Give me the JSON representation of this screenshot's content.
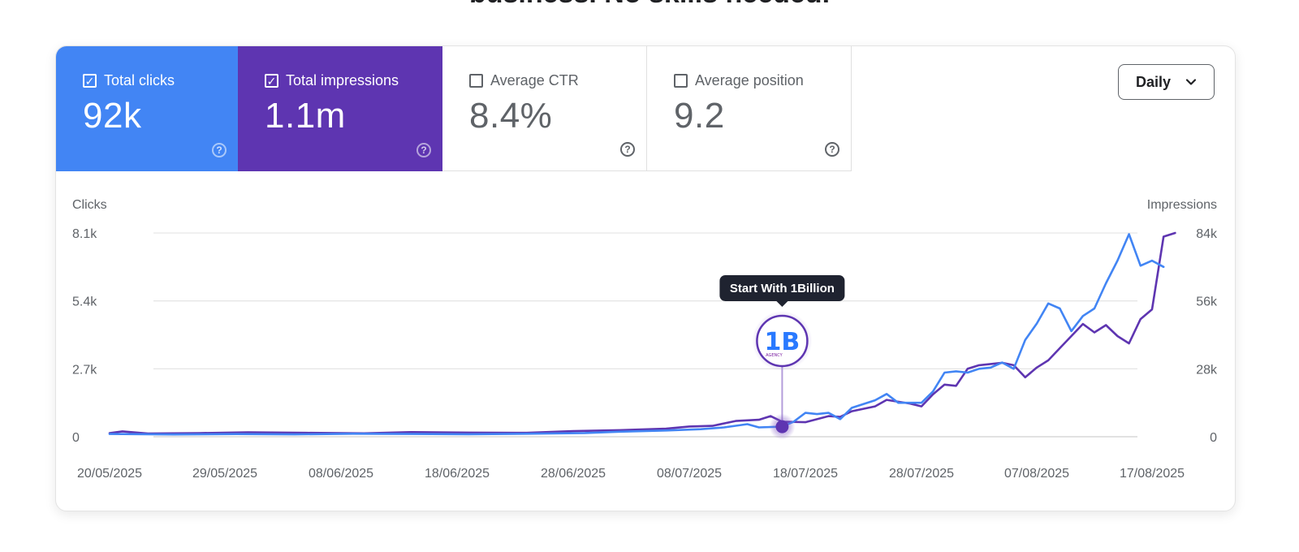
{
  "page": {
    "heading_partial": "business. No skills needed."
  },
  "tabs": [
    {
      "label": "Total clicks",
      "value": "92k",
      "checked": true
    },
    {
      "label": "Total impressions",
      "value": "1.1m",
      "checked": true
    },
    {
      "label": "Average CTR",
      "value": "8.4%",
      "checked": false
    },
    {
      "label": "Average position",
      "value": "9.2",
      "checked": false
    }
  ],
  "period_dropdown": {
    "selected": "Daily"
  },
  "annotation": {
    "tooltip": "Start With 1Billion",
    "logo_text": "1B",
    "logo_caption": "AGENCY",
    "x": "16/07/2025",
    "clicks": 400
  },
  "colors": {
    "clicks": "#4285f4",
    "impressions": "#5e35b1",
    "tooltip_bg": "#1f2330"
  },
  "chart_data": {
    "type": "line",
    "title": "",
    "xlabel": "",
    "ylabel_left": "Clicks",
    "ylabel_right": "Impressions",
    "left_axis": {
      "ylim": [
        0,
        8100
      ],
      "ticks": [
        "0",
        "2.7k",
        "5.4k",
        "8.1k"
      ]
    },
    "right_axis": {
      "ylim": [
        0,
        84000
      ],
      "ticks": [
        "0",
        "28k",
        "56k",
        "84k"
      ]
    },
    "x_ticks": [
      "20/05/2025",
      "29/05/2025",
      "08/06/2025",
      "18/06/2025",
      "28/06/2025",
      "08/07/2025",
      "18/07/2025",
      "28/07/2025",
      "07/08/2025",
      "17/08/2025"
    ],
    "grid": true,
    "legend": "none",
    "series": [
      {
        "name": "Total clicks",
        "axis": "left",
        "color": "#4285f4",
        "points": [
          [
            "20/05/2025",
            110
          ],
          [
            "25/05/2025",
            90
          ],
          [
            "30/05/2025",
            105
          ],
          [
            "04/06/2025",
            95
          ],
          [
            "09/06/2025",
            120
          ],
          [
            "14/06/2025",
            110
          ],
          [
            "19/06/2025",
            100
          ],
          [
            "24/06/2025",
            120
          ],
          [
            "29/06/2025",
            150
          ],
          [
            "02/07/2025",
            200
          ],
          [
            "06/07/2025",
            250
          ],
          [
            "09/07/2025",
            300
          ],
          [
            "11/07/2025",
            370
          ],
          [
            "13/07/2025",
            500
          ],
          [
            "14/07/2025",
            370
          ],
          [
            "16/07/2025",
            400
          ],
          [
            "17/07/2025",
            600
          ],
          [
            "18/07/2025",
            950
          ],
          [
            "19/07/2025",
            900
          ],
          [
            "20/07/2025",
            950
          ],
          [
            "21/07/2025",
            700
          ],
          [
            "22/07/2025",
            1150
          ],
          [
            "24/07/2025",
            1450
          ],
          [
            "25/07/2025",
            1700
          ],
          [
            "26/07/2025",
            1350
          ],
          [
            "28/07/2025",
            1350
          ],
          [
            "29/07/2025",
            1800
          ],
          [
            "30/07/2025",
            2550
          ],
          [
            "31/07/2025",
            2600
          ],
          [
            "01/08/2025",
            2550
          ],
          [
            "02/08/2025",
            2700
          ],
          [
            "03/08/2025",
            2750
          ],
          [
            "04/08/2025",
            2950
          ],
          [
            "05/08/2025",
            2700
          ],
          [
            "06/08/2025",
            3850
          ],
          [
            "07/08/2025",
            4500
          ],
          [
            "08/08/2025",
            5300
          ],
          [
            "09/08/2025",
            5100
          ],
          [
            "10/08/2025",
            4200
          ],
          [
            "11/08/2025",
            4800
          ],
          [
            "12/08/2025",
            5100
          ],
          [
            "13/08/2025",
            6100
          ],
          [
            "14/08/2025",
            7000
          ],
          [
            "15/08/2025",
            8050
          ],
          [
            "16/08/2025",
            6800
          ],
          [
            "17/08/2025",
            7000
          ],
          [
            "18/08/2025",
            6750
          ]
        ]
      },
      {
        "name": "Total impressions",
        "axis": "right",
        "color": "#5e35b1",
        "points": [
          [
            "20/05/2025",
            1500
          ],
          [
            "21/05/2025",
            2200
          ],
          [
            "23/05/2025",
            1300
          ],
          [
            "27/05/2025",
            1500
          ],
          [
            "31/05/2025",
            1800
          ],
          [
            "05/06/2025",
            1600
          ],
          [
            "10/06/2025",
            1400
          ],
          [
            "14/06/2025",
            1900
          ],
          [
            "19/06/2025",
            1700
          ],
          [
            "24/06/2025",
            1600
          ],
          [
            "28/06/2025",
            2300
          ],
          [
            "02/07/2025",
            2700
          ],
          [
            "06/07/2025",
            3300
          ],
          [
            "08/07/2025",
            4200
          ],
          [
            "10/07/2025",
            4500
          ],
          [
            "12/07/2025",
            6500
          ],
          [
            "14/07/2025",
            7000
          ],
          [
            "15/07/2025",
            8500
          ],
          [
            "16/07/2025",
            6200
          ],
          [
            "18/07/2025",
            6000
          ],
          [
            "20/07/2025",
            8500
          ],
          [
            "21/07/2025",
            8200
          ],
          [
            "22/07/2025",
            10500
          ],
          [
            "24/07/2025",
            12500
          ],
          [
            "25/07/2025",
            15200
          ],
          [
            "27/07/2025",
            13700
          ],
          [
            "28/07/2025",
            12500
          ],
          [
            "29/07/2025",
            17500
          ],
          [
            "30/07/2025",
            21500
          ],
          [
            "31/07/2025",
            21000
          ],
          [
            "01/08/2025",
            28000
          ],
          [
            "02/08/2025",
            29500
          ],
          [
            "04/08/2025",
            30500
          ],
          [
            "05/08/2025",
            29500
          ],
          [
            "06/08/2025",
            24500
          ],
          [
            "07/08/2025",
            28500
          ],
          [
            "08/08/2025",
            31500
          ],
          [
            "09/08/2025",
            36500
          ],
          [
            "10/08/2025",
            41500
          ],
          [
            "11/08/2025",
            46500
          ],
          [
            "12/08/2025",
            43000
          ],
          [
            "13/08/2025",
            46000
          ],
          [
            "14/08/2025",
            41500
          ],
          [
            "15/08/2025",
            38500
          ],
          [
            "16/08/2025",
            48500
          ],
          [
            "17/08/2025",
            52500
          ],
          [
            "18/08/2025",
            82500
          ],
          [
            "19/08/2025",
            84000
          ]
        ]
      }
    ]
  }
}
